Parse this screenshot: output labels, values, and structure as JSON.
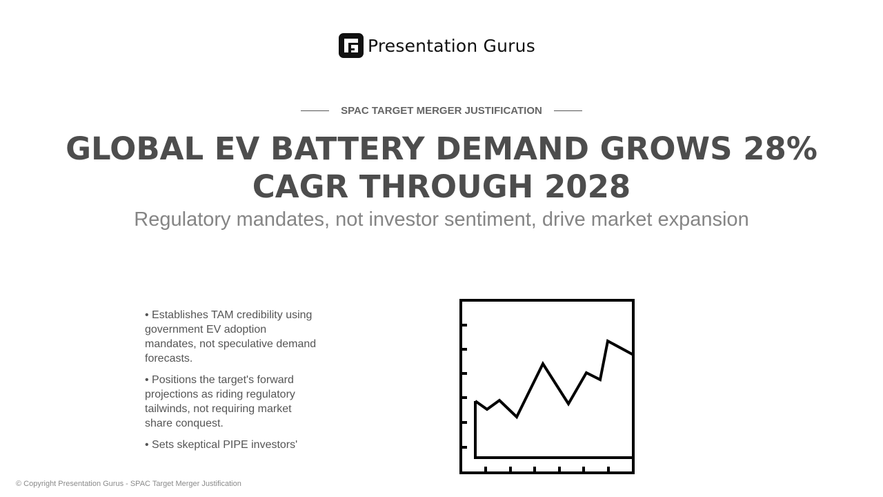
{
  "brand": {
    "name": "Presentation Gurus",
    "logo_icon": "presentation-gurus-logo-icon"
  },
  "slide": {
    "eyebrow": "SPAC TARGET MERGER JUSTIFICATION",
    "title": "GLOBAL EV BATTERY DEMAND GROWS 28% CAGR THROUGH 2028",
    "subtitle": "Regulatory mandates, not investor sentiment, drive market expansion",
    "bullets": [
      "• Establishes TAM credibility using government EV adoption mandates, not speculative demand forecasts.",
      "• Positions the target's forward projections as riding regulatory tailwinds, not requiring market share conquest.",
      "• Sets skeptical PIPE investors'"
    ],
    "illustration_icon": "line-chart-icon"
  },
  "footer": {
    "copyright": "© Copyright Presentation Gurus - SPAC Target Merger Justification"
  },
  "colors": {
    "title": "#4d4d4d",
    "subtitle": "#858585",
    "body": "#555555",
    "icon": "#000000"
  }
}
